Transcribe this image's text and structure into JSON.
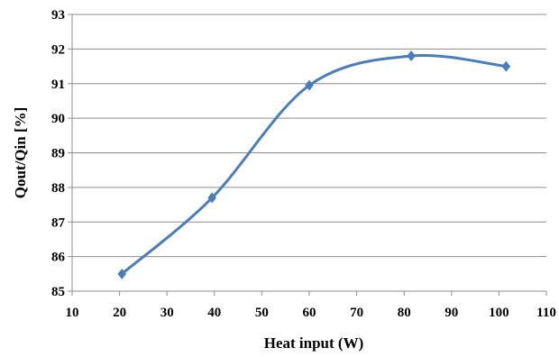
{
  "chart_data": {
    "type": "line",
    "title": "",
    "xlabel": "Heat input (W)",
    "ylabel": "Qout/Qin [%]",
    "xlim": [
      10,
      110
    ],
    "ylim": [
      85,
      93
    ],
    "xticks": [
      10,
      20,
      30,
      40,
      50,
      60,
      70,
      80,
      90,
      100,
      110
    ],
    "yticks": [
      85,
      86,
      87,
      88,
      89,
      90,
      91,
      92,
      93
    ],
    "grid": "horizontal",
    "legend": "none",
    "smooth": true,
    "marker": "diamond",
    "series": [
      {
        "color": "#4a7ebb",
        "x": [
          20.5,
          39.5,
          60,
          81.5,
          101.5
        ],
        "y": [
          85.5,
          87.7,
          90.95,
          91.8,
          91.5
        ]
      }
    ]
  }
}
